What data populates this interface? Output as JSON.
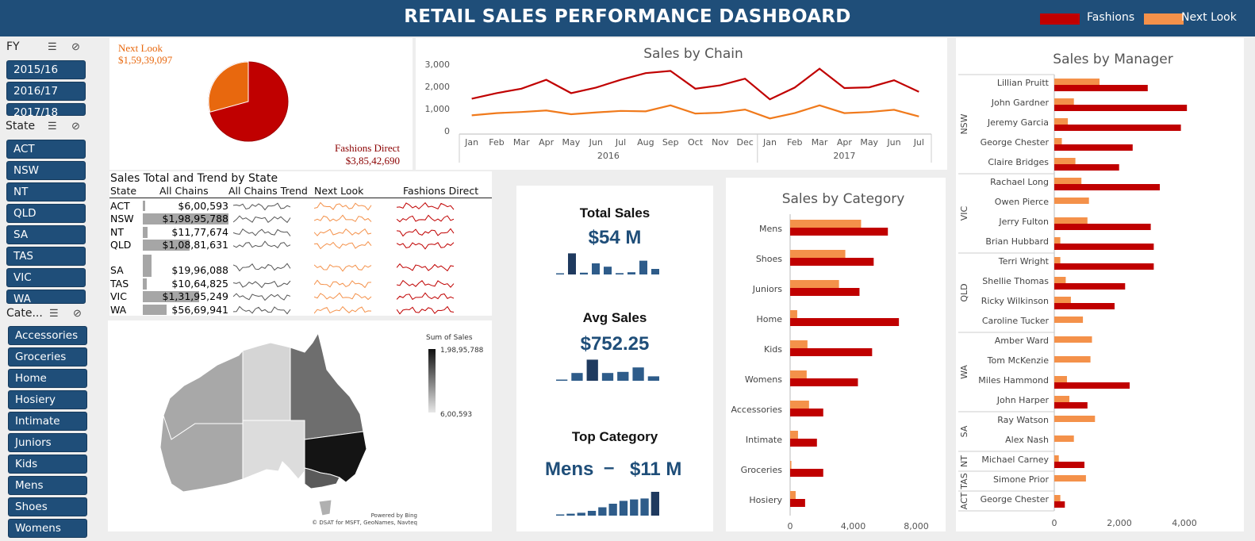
{
  "header": {
    "title": "RETAIL SALES PERFORMANCE DASHBOARD",
    "legend": [
      {
        "label": "Fashions",
        "color": "#c00000"
      },
      {
        "label": "Next Look",
        "color": "#f4914a"
      }
    ]
  },
  "colors": {
    "header": "#1f4e79",
    "fashions": "#c00000",
    "next_look": "#f4914a",
    "kpi_bar": "#2e5c8a",
    "pie_fashions": "#c00000",
    "pie_next_look": "#e8680e"
  },
  "slicers": {
    "fy": {
      "title": "FY",
      "items": [
        "2015/16",
        "2016/17",
        "2017/18"
      ]
    },
    "state": {
      "title": "State",
      "items": [
        "ACT",
        "NSW",
        "NT",
        "QLD",
        "SA",
        "TAS",
        "VIC",
        "WA"
      ]
    },
    "category": {
      "title": "Cate...",
      "items": [
        "Accessories",
        "Groceries",
        "Home",
        "Hosiery",
        "Intimate",
        "Juniors",
        "Kids",
        "Mens",
        "Shoes",
        "Womens"
      ]
    }
  },
  "pie": {
    "next_look_label": "Next Look",
    "next_look_value": "$1,59,39,097",
    "fashions_label": "Fashions Direct",
    "fashions_value": "$3,85,42,690"
  },
  "state_table": {
    "title": "Sales Total and Trend by State",
    "headers": [
      "State",
      "All Chains",
      "All Chains Trend",
      "Next Look",
      "Fashions Direct"
    ],
    "rows": [
      {
        "state": "ACT",
        "total": "$6,00,593",
        "pct": 3
      },
      {
        "state": "NSW",
        "total": "$1,98,95,788",
        "pct": 100
      },
      {
        "state": "NT",
        "total": "$11,77,674",
        "pct": 6
      },
      {
        "state": "QLD",
        "total": "$1,08,81,631",
        "pct": 55
      },
      {
        "state": "SA",
        "total": "$19,96,088",
        "pct": 10
      },
      {
        "state": "TAS",
        "total": "$10,64,825",
        "pct": 5
      },
      {
        "state": "VIC",
        "total": "$1,31,95,249",
        "pct": 66
      },
      {
        "state": "WA",
        "total": "$56,69,941",
        "pct": 28
      }
    ]
  },
  "map": {
    "legend_title": "Sum of Sales",
    "legend_max": "1,98,95,788",
    "legend_min": "6,00,593",
    "credit1": "Powered by Bing",
    "credit2": "© DSAT for MSFT, GeoNames, Navteq"
  },
  "kpis": {
    "total": {
      "title": "Total Sales",
      "value": "$54 M",
      "bars": [
        0.05,
        0.95,
        0.08,
        0.5,
        0.35,
        0.06,
        0.1,
        0.62,
        0.25
      ]
    },
    "avg": {
      "title": "Avg Sales",
      "value": "$752.25",
      "bars": [
        0.05,
        0.35,
        0.95,
        0.35,
        0.4,
        0.6,
        0.2
      ]
    },
    "top": {
      "title": "Top Category",
      "category": "Mens",
      "dash": "–",
      "value": "$11 M",
      "bars": [
        0.05,
        0.08,
        0.12,
        0.2,
        0.35,
        0.5,
        0.62,
        0.68,
        0.72,
        1.0
      ]
    }
  },
  "chart_data": [
    {
      "type": "line",
      "title": "Sales by Chain",
      "categories": [
        "Jan",
        "Feb",
        "Mar",
        "Apr",
        "May",
        "Jun",
        "Jul",
        "Aug",
        "Sep",
        "Oct",
        "Nov",
        "Dec",
        "Jan",
        "Feb",
        "Mar",
        "Apr",
        "May",
        "Jun",
        "Jul"
      ],
      "groups": [
        {
          "label": "2016",
          "count": 12
        },
        {
          "label": "2017",
          "count": 7
        }
      ],
      "ylim": [
        0,
        3000
      ],
      "yticks": [
        "3,000",
        "2,000",
        "1,000",
        "0"
      ],
      "series": [
        {
          "name": "Fashions",
          "values": [
            1450,
            1700,
            1900,
            2300,
            1700,
            1950,
            2300,
            2600,
            2700,
            1900,
            2050,
            2350,
            1420,
            1950,
            2800,
            1930,
            1960,
            2280,
            1760
          ]
        },
        {
          "name": "Next Look",
          "values": [
            700,
            800,
            850,
            920,
            750,
            830,
            900,
            880,
            1150,
            780,
            820,
            960,
            560,
            800,
            1150,
            800,
            850,
            950,
            650
          ]
        }
      ]
    },
    {
      "type": "bar",
      "title": "Sales by Category",
      "categories": [
        "Mens",
        "Shoes",
        "Juniors",
        "Home",
        "Kids",
        "Womens",
        "Accessories",
        "Intimate",
        "Groceries",
        "Hosiery"
      ],
      "xlim": [
        0,
        8000
      ],
      "xticks": [
        "0",
        "4,000",
        "8,000"
      ],
      "series": [
        {
          "name": "Next Look",
          "values": [
            4500,
            3500,
            3100,
            450,
            1100,
            1050,
            1200,
            500,
            80,
            350
          ]
        },
        {
          "name": "Fashions",
          "values": [
            6200,
            5300,
            4400,
            6900,
            5200,
            4300,
            2100,
            1700,
            2100,
            950
          ]
        }
      ]
    },
    {
      "type": "bar",
      "title": "Sales by Manager",
      "groups": [
        {
          "label": "NSW",
          "managers": [
            "Lillian Pruitt",
            "John Gardner",
            "Jeremy Garcia",
            "George Chester",
            "Claire Bridges"
          ]
        },
        {
          "label": "VIC",
          "managers": [
            "Rachael Long",
            "Owen Pierce",
            "Jerry Fulton",
            "Brian Hubbard"
          ]
        },
        {
          "label": "QLD",
          "managers": [
            "Terri Wright",
            "Shellie Thomas",
            "Ricky Wilkinson",
            "Caroline Tucker"
          ]
        },
        {
          "label": "WA",
          "managers": [
            "Amber Ward",
            "Tom McKenzie",
            "Miles Hammond",
            "John Harper"
          ]
        },
        {
          "label": "SA",
          "managers": [
            "Ray Watson",
            "Alex Nash"
          ]
        },
        {
          "label": "NT",
          "managers": [
            "Michael Carney"
          ]
        },
        {
          "label": "TAS",
          "managers": [
            "Simone Prior"
          ]
        },
        {
          "label": "ACT",
          "managers": [
            "George Chester"
          ]
        }
      ],
      "xlim": [
        0,
        4500
      ],
      "xticks": [
        "0",
        "2,000",
        "4,000"
      ],
      "series": [
        {
          "name": "Next Look",
          "values": [
            1500,
            650,
            450,
            250,
            700,
            900,
            1150,
            1100,
            200,
            200,
            380,
            550,
            950,
            1250,
            1200,
            420,
            500,
            1350,
            650,
            150,
            1050,
            200
          ]
        },
        {
          "name": "Fashions",
          "values": [
            3100,
            4400,
            4200,
            2600,
            2150,
            3500,
            0,
            3200,
            3300,
            3300,
            2350,
            2000,
            0,
            0,
            0,
            2500,
            1100,
            0,
            0,
            1000,
            0,
            350
          ]
        }
      ]
    }
  ]
}
